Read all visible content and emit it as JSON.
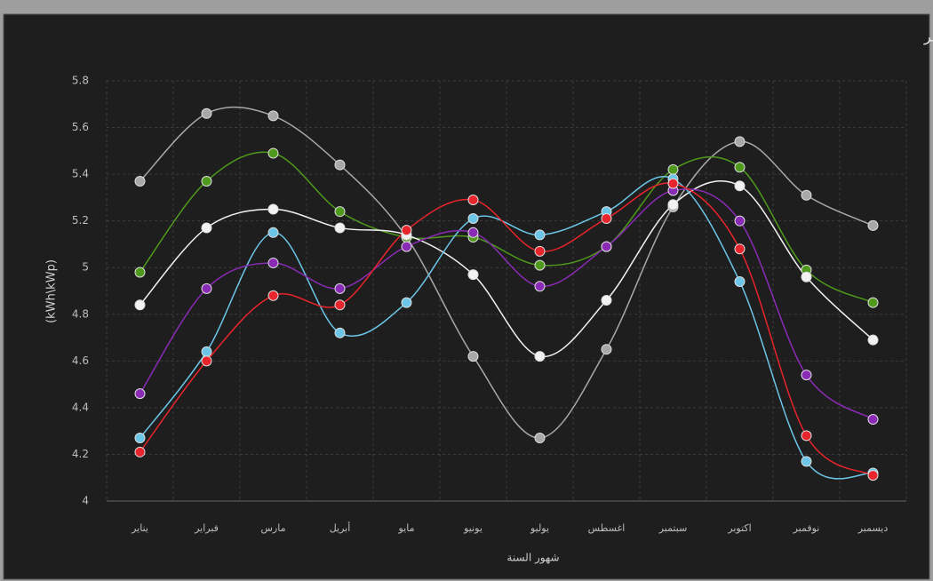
{
  "chart_data": {
    "type": "line",
    "title": "متوسط الإنتاج اليومي المتوقع للكهرباء الكهروضوئية لكل دولة حسب كل شهر",
    "x_label": "شهور السنة",
    "y_label": "(kWh\\kWp)",
    "categories": [
      "يناير",
      "فبراير",
      "مارس",
      "أبريل",
      "مايو",
      "يونيو",
      "يوليو",
      "اغسطس",
      "سبتمبر",
      "اكتوبر",
      "نوفمبر",
      "ديسمبر"
    ],
    "series": [
      {
        "color": "#a8a8a8",
        "values": [
          5.37,
          5.66,
          5.65,
          5.44,
          5.13,
          4.62,
          4.27,
          4.65,
          5.26,
          5.54,
          5.31,
          5.18
        ]
      },
      {
        "color": "#4f9a1c",
        "values": [
          4.98,
          5.37,
          5.49,
          5.24,
          5.13,
          5.13,
          5.01,
          5.09,
          5.42,
          5.43,
          4.99,
          4.85
        ]
      },
      {
        "color": "#f2f2f2",
        "values": [
          4.84,
          5.17,
          5.25,
          5.17,
          5.14,
          4.97,
          4.62,
          4.86,
          5.27,
          5.35,
          4.96,
          4.69
        ]
      },
      {
        "color": "#6cc6e8",
        "values": [
          4.27,
          4.64,
          5.15,
          4.72,
          4.85,
          5.21,
          5.14,
          5.24,
          5.38,
          4.94,
          4.17,
          4.12
        ]
      },
      {
        "color": "#8a2bb5",
        "values": [
          4.46,
          4.91,
          5.02,
          4.91,
          5.09,
          5.15,
          4.92,
          5.09,
          5.33,
          5.2,
          4.54,
          4.35
        ]
      },
      {
        "color": "#e8242c",
        "values": [
          4.21,
          4.6,
          4.88,
          4.84,
          5.16,
          5.29,
          5.07,
          5.21,
          5.36,
          5.08,
          4.28,
          4.11
        ]
      }
    ],
    "ylim": [
      4,
      5.8
    ],
    "yticks": [
      4,
      4.2,
      4.4,
      4.6,
      4.8,
      5,
      5.2,
      5.4,
      5.6,
      5.8
    ],
    "grid": true
  }
}
